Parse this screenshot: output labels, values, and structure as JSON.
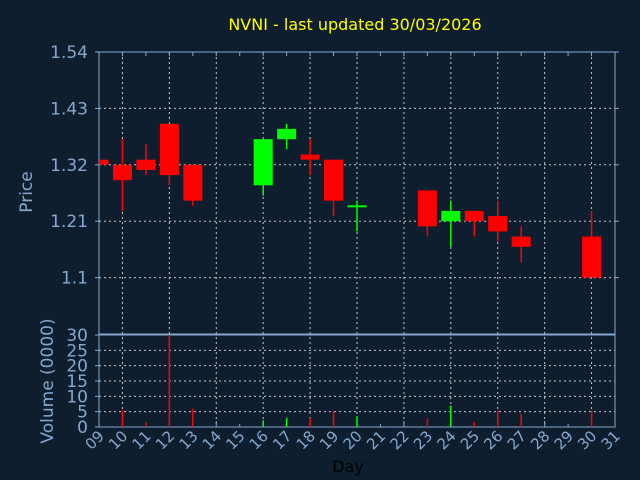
{
  "chart_data": [
    {
      "type": "candlestick",
      "title": "NVNI - last updated 30/03/2026",
      "ylabel": "Price",
      "ylim": [
        0.99,
        1.54
      ],
      "yticks": [
        "1.54",
        "1.43",
        "1.32",
        "1.21",
        "1.1"
      ],
      "grid": true,
      "colors": {
        "up": "#00ff00",
        "down": "#ff0000"
      },
      "candles": [
        {
          "day": 9,
          "open": 1.33,
          "high": 1.33,
          "low": 1.32,
          "close": 1.32
        },
        {
          "day": 10,
          "open": 1.32,
          "high": 1.37,
          "low": 1.23,
          "close": 1.29
        },
        {
          "day": 11,
          "open": 1.33,
          "high": 1.36,
          "low": 1.3,
          "close": 1.31
        },
        {
          "day": 12,
          "open": 1.4,
          "high": 1.4,
          "low": 1.28,
          "close": 1.3
        },
        {
          "day": 13,
          "open": 1.32,
          "high": 1.32,
          "low": 1.24,
          "close": 1.25
        },
        {
          "day": 16,
          "open": 1.28,
          "high": 1.37,
          "low": 1.26,
          "close": 1.37
        },
        {
          "day": 17,
          "open": 1.37,
          "high": 1.4,
          "low": 1.35,
          "close": 1.39
        },
        {
          "day": 18,
          "open": 1.34,
          "high": 1.37,
          "low": 1.3,
          "close": 1.33
        },
        {
          "day": 19,
          "open": 1.33,
          "high": 1.33,
          "low": 1.22,
          "close": 1.25
        },
        {
          "day": 20,
          "open": 1.24,
          "high": 1.25,
          "low": 1.19,
          "close": 1.241
        },
        {
          "day": 23,
          "open": 1.27,
          "high": 1.27,
          "low": 1.18,
          "close": 1.2
        },
        {
          "day": 24,
          "open": 1.21,
          "high": 1.25,
          "low": 1.16,
          "close": 1.23
        },
        {
          "day": 25,
          "open": 1.23,
          "high": 1.23,
          "low": 1.18,
          "close": 1.21
        },
        {
          "day": 26,
          "open": 1.22,
          "high": 1.25,
          "low": 1.17,
          "close": 1.19
        },
        {
          "day": 27,
          "open": 1.18,
          "high": 1.2,
          "low": 1.13,
          "close": 1.16
        },
        {
          "day": 30,
          "open": 1.18,
          "high": 1.23,
          "low": 1.1,
          "close": 1.1
        }
      ]
    },
    {
      "type": "bar",
      "ylabel": "Volume (0000)",
      "xlabel": "Day",
      "ylim": [
        0,
        30
      ],
      "yticks": [
        "30",
        "25",
        "20",
        "15",
        "10",
        "5",
        "0"
      ],
      "xticks": [
        "09",
        "10",
        "11",
        "12",
        "13",
        "14",
        "15",
        "16",
        "17",
        "18",
        "19",
        "20",
        "21",
        "22",
        "23",
        "24",
        "25",
        "26",
        "27",
        "28",
        "29",
        "30",
        "31"
      ],
      "grid": true,
      "bars": [
        {
          "day": 10,
          "value": 5.4,
          "dir": "down"
        },
        {
          "day": 11,
          "value": 1.6,
          "dir": "down"
        },
        {
          "day": 12,
          "value": 30,
          "dir": "down"
        },
        {
          "day": 13,
          "value": 6,
          "dir": "down"
        },
        {
          "day": 16,
          "value": 2.2,
          "dir": "up"
        },
        {
          "day": 17,
          "value": 3,
          "dir": "up"
        },
        {
          "day": 18,
          "value": 2.8,
          "dir": "down"
        },
        {
          "day": 19,
          "value": 5.2,
          "dir": "down"
        },
        {
          "day": 20,
          "value": 3.5,
          "dir": "up"
        },
        {
          "day": 23,
          "value": 2.8,
          "dir": "down"
        },
        {
          "day": 24,
          "value": 7,
          "dir": "up"
        },
        {
          "day": 25,
          "value": 1.6,
          "dir": "down"
        },
        {
          "day": 26,
          "value": 5.4,
          "dir": "down"
        },
        {
          "day": 27,
          "value": 4.3,
          "dir": "down"
        },
        {
          "day": 30,
          "value": 5.4,
          "dir": "down"
        }
      ]
    }
  ],
  "colors": {
    "background": "#0f1e2f",
    "title": "#ffff00",
    "axis": "#86a8cf",
    "grid": "#c8c8c8"
  }
}
